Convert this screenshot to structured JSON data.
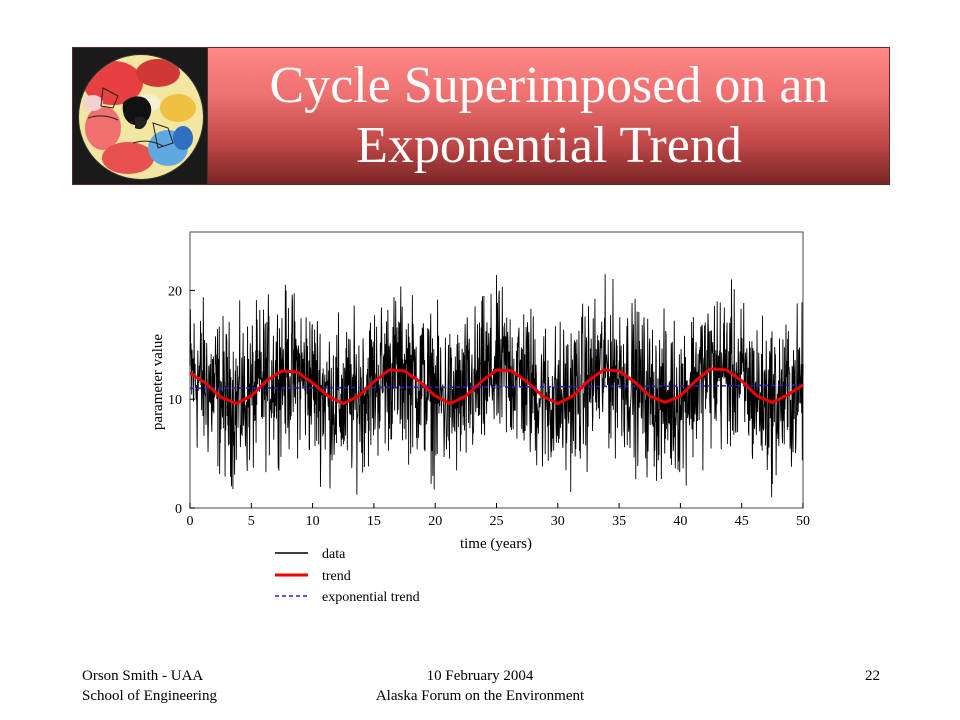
{
  "slide": {
    "title_line1": "Cycle Superimposed on an",
    "title_line2": "Exponential Trend",
    "logo_icon": "arctic-temperature-map-icon"
  },
  "footer": {
    "left_line1": "Orson Smith - UAA",
    "left_line2": "School of Engineering",
    "center_line1": "10 February 2004",
    "center_line2": "Alaska Forum on the Environment",
    "page_number": "22"
  },
  "chart_data": {
    "type": "line",
    "xlabel": "time (years)",
    "ylabel": "parameter value",
    "xlim": [
      0,
      50
    ],
    "ylim": [
      0,
      25
    ],
    "x_ticks": [
      "0",
      "5",
      "10",
      "15",
      "20",
      "25",
      "30",
      "35",
      "40",
      "45",
      "50"
    ],
    "y_ticks": [
      "0",
      "10",
      "20"
    ],
    "x_tick_values": [
      0,
      5,
      10,
      15,
      20,
      25,
      30,
      35,
      40,
      45,
      50
    ],
    "y_tick_values": [
      0,
      10,
      20
    ],
    "grid": false,
    "legend_position": "below",
    "series": [
      {
        "name": "data",
        "color": "#000000",
        "style": "solid",
        "description_model": {
          "mean_follows": "trend",
          "noise_amplitude": 6.5,
          "noise_spread": [
            -9,
            10
          ]
        }
      },
      {
        "name": "trend",
        "color": "#ee0000",
        "style": "solid",
        "x": [
          0,
          1.25,
          2.5,
          3.75,
          5,
          6.25,
          7.5,
          8.75,
          10,
          11.25,
          12.5,
          13.75,
          15,
          16.25,
          17.5,
          18.75,
          20,
          21.25,
          22.5,
          23.75,
          25,
          26.25,
          27.5,
          28.75,
          30,
          31.25,
          32.5,
          33.75,
          35,
          36.25,
          37.5,
          38.75,
          40,
          41.25,
          42.5,
          43.75,
          45,
          46.25,
          47.5,
          48.75,
          50
        ],
        "values": [
          12.4,
          11.5,
          10.2,
          9.6,
          10.3,
          11.7,
          12.6,
          12.5,
          11.5,
          10.3,
          9.6,
          10.3,
          11.6,
          12.7,
          12.6,
          11.6,
          10.3,
          9.6,
          10.3,
          11.6,
          12.7,
          12.6,
          11.6,
          10.3,
          9.6,
          10.3,
          11.7,
          12.7,
          12.6,
          11.6,
          10.3,
          9.7,
          10.3,
          11.7,
          12.8,
          12.7,
          11.7,
          10.3,
          9.7,
          10.4,
          11.3
        ]
      },
      {
        "name": "exponential trend",
        "color": "#2222cc",
        "style": "dashed",
        "x": [
          0,
          10,
          20,
          30,
          40,
          50
        ],
        "values": [
          11.0,
          11.05,
          11.1,
          11.15,
          11.2,
          11.3
        ]
      }
    ]
  }
}
